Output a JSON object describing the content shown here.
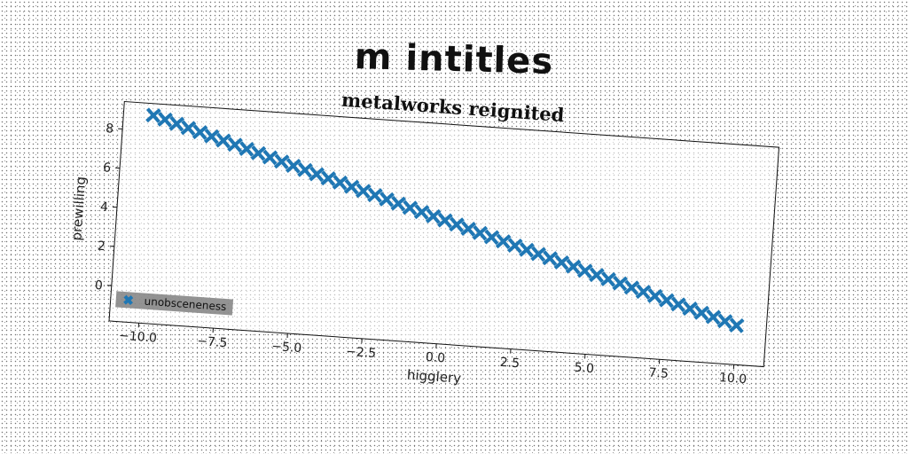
{
  "figure": {
    "suptitle": "m intitles"
  },
  "chart_data": {
    "type": "scatter",
    "title": "metalworks reignited",
    "xlabel": "higglery",
    "ylabel": "prewilling",
    "xlim": [
      -11,
      11
    ],
    "ylim": [
      -1.8,
      9.4
    ],
    "xticks": [
      -10.0,
      -7.5,
      -5.0,
      -2.5,
      0.0,
      2.5,
      5.0,
      7.5,
      10.0
    ],
    "xtick_labels": [
      "−10.0",
      "−7.5",
      "−5.0",
      "−2.5",
      "0.0",
      "2.5",
      "5.0",
      "7.5",
      "10.0"
    ],
    "yticks": [
      0,
      2,
      4,
      6,
      8
    ],
    "ytick_labels": [
      "0",
      "2",
      "4",
      "6",
      "8"
    ],
    "grid": false,
    "legend_position": "lower-left",
    "series": [
      {
        "name": "unobsceneness",
        "color": "#1f77b4",
        "marker": "x",
        "line": {
          "slope": -0.43,
          "intercept": 4.5,
          "x_start": -10,
          "x_end": 10,
          "n_points": 51
        }
      }
    ]
  }
}
